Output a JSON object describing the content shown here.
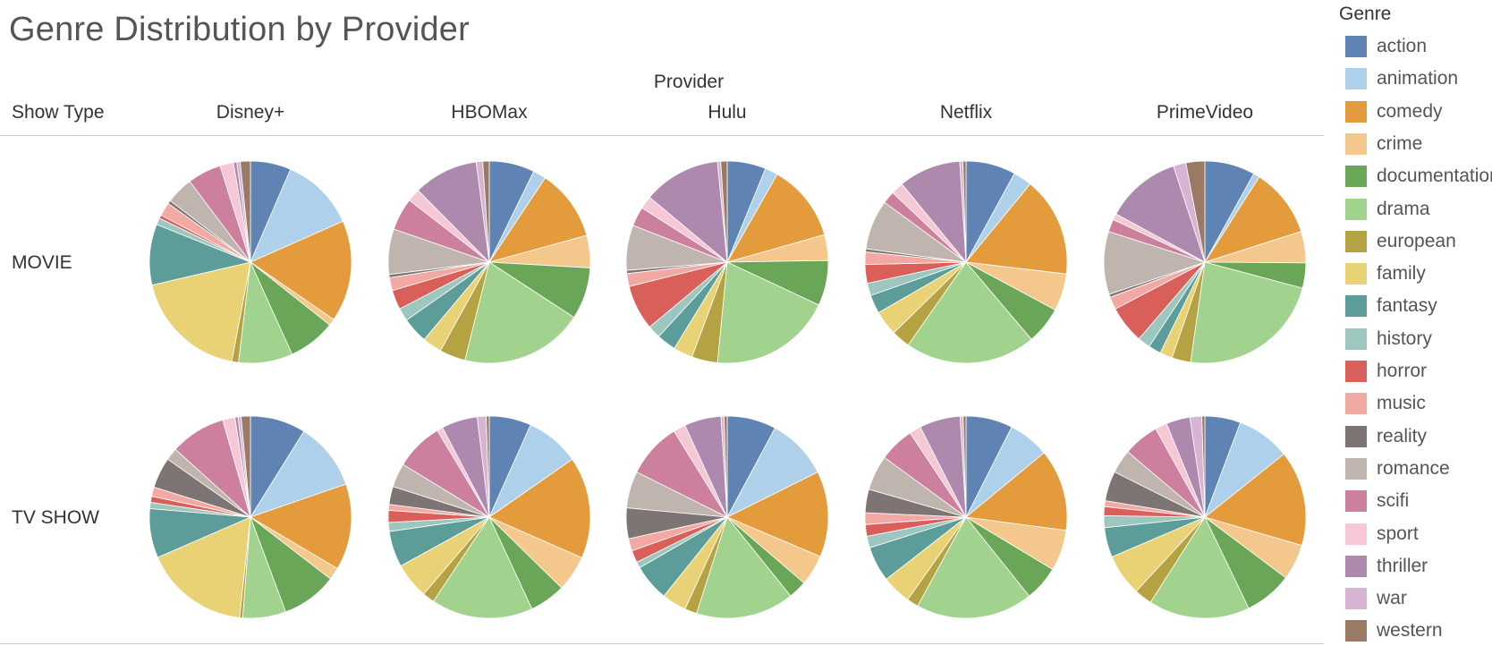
{
  "title": "Genre Distribution by Provider",
  "provider_header": "Provider",
  "row_header": "Show Type",
  "legend_title": "Genre",
  "chart_data": {
    "type": "pie",
    "title": "Genre Distribution by Provider",
    "column_field": "Provider",
    "row_field": "Show Type",
    "color_field": "Genre",
    "providers": [
      "Disney+",
      "HBOMax",
      "Hulu",
      "Netflix",
      "PrimeVideo"
    ],
    "show_types": [
      "MOVIE",
      "TV SHOW"
    ],
    "genres": [
      {
        "name": "action",
        "color": "#5f84b3"
      },
      {
        "name": "animation",
        "color": "#afd0ea"
      },
      {
        "name": "comedy",
        "color": "#e49b3c"
      },
      {
        "name": "crime",
        "color": "#f4c78c"
      },
      {
        "name": "documentation",
        "color": "#6aa657"
      },
      {
        "name": "drama",
        "color": "#a2d38e"
      },
      {
        "name": "european",
        "color": "#b5a343"
      },
      {
        "name": "family",
        "color": "#e9d275"
      },
      {
        "name": "fantasy",
        "color": "#5c9d99"
      },
      {
        "name": "history",
        "color": "#9cc6be"
      },
      {
        "name": "horror",
        "color": "#d9605a"
      },
      {
        "name": "music",
        "color": "#f2a9a3"
      },
      {
        "name": "reality",
        "color": "#7e7474"
      },
      {
        "name": "romance",
        "color": "#bfb5ae"
      },
      {
        "name": "scifi",
        "color": "#cd7f9e"
      },
      {
        "name": "sport",
        "color": "#f6c8d6"
      },
      {
        "name": "thriller",
        "color": "#ae89ae"
      },
      {
        "name": "war",
        "color": "#d8b4d3"
      },
      {
        "name": "western",
        "color": "#9a7a64"
      }
    ],
    "values": {
      "MOVIE": {
        "Disney+": [
          6,
          11,
          15,
          1,
          7,
          8,
          1,
          17,
          9,
          1,
          0.5,
          2,
          0.5,
          4,
          5,
          2,
          0.5,
          0.5,
          1.5
        ],
        "HBOMax": [
          7,
          2,
          11,
          5,
          8,
          19,
          4,
          3,
          4,
          2,
          3,
          2,
          0.5,
          7,
          5,
          2,
          10,
          1,
          1
        ],
        "Hulu": [
          6,
          2,
          12,
          4,
          7,
          19,
          4,
          3,
          3,
          2,
          7,
          2,
          0.5,
          7,
          3,
          2,
          12,
          0.5,
          1
        ],
        "Netflix": [
          8,
          3,
          16,
          6,
          6,
          21,
          3,
          4,
          3,
          2,
          3,
          2,
          0.5,
          8,
          2,
          2,
          10,
          0.5,
          0.5
        ],
        "PrimeVideo": [
          8,
          1,
          11,
          5,
          4,
          23,
          3,
          2,
          2,
          2,
          6,
          2,
          0.5,
          10,
          2,
          1,
          12,
          2,
          3
        ]
      },
      "TV SHOW": {
        "Disney+": [
          9,
          11,
          14,
          2,
          9,
          7,
          0.5,
          17,
          8,
          1,
          1,
          1.5,
          5,
          2,
          9,
          2,
          0.5,
          0.5,
          1.5
        ],
        "HBOMax": [
          7,
          9,
          17,
          6,
          6,
          17,
          2,
          6,
          6,
          1.5,
          2,
          1,
          3,
          4,
          8,
          1,
          6,
          1.5,
          0.5
        ],
        "Hulu": [
          8,
          10,
          14,
          5,
          3,
          16,
          2,
          4,
          6,
          1,
          2,
          2,
          5,
          6,
          9,
          2,
          6,
          0.5,
          0.5
        ],
        "Netflix": [
          8,
          7,
          14,
          7,
          6,
          20,
          2,
          5,
          6,
          2,
          2,
          2,
          4,
          6,
          6,
          2,
          7,
          0.5,
          0.5
        ],
        "PrimeVideo": [
          6,
          9,
          16,
          6,
          8,
          17,
          3,
          7,
          5,
          2,
          1.5,
          1,
          5,
          4,
          6,
          2,
          4,
          2,
          0.5
        ]
      }
    }
  }
}
